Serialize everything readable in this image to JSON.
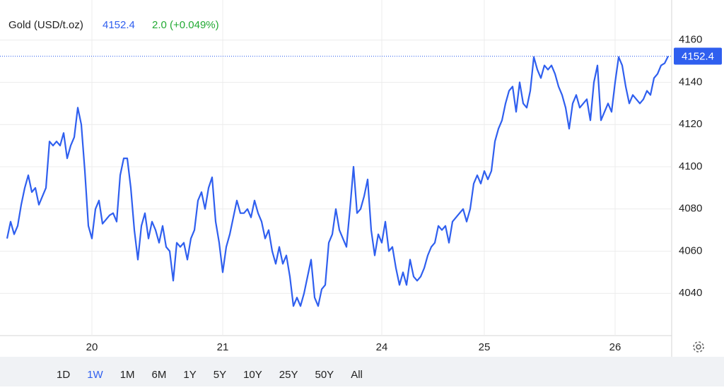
{
  "chart_data": {
    "type": "line",
    "title": "Gold (USD/t.oz)",
    "last_price": 4152.4,
    "change_label": "2.0 (+0.049%)",
    "ylim": [
      4020,
      4179
    ],
    "yticks": [
      4040,
      4060,
      4080,
      4100,
      4120,
      4140,
      4160
    ],
    "grid": true,
    "ranges": [
      "1D",
      "1W",
      "1M",
      "6M",
      "1Y",
      "5Y",
      "10Y",
      "25Y",
      "50Y",
      "All"
    ],
    "selected_range": 1,
    "categories": [
      null,
      null,
      null,
      null,
      null,
      null,
      null,
      null,
      null,
      null,
      null,
      null,
      null,
      null,
      null,
      null,
      null,
      null,
      null,
      null,
      null,
      null,
      null,
      null,
      "20",
      null,
      null,
      null,
      null,
      null,
      null,
      null,
      null,
      null,
      null,
      null,
      null,
      null,
      null,
      null,
      null,
      null,
      null,
      null,
      null,
      null,
      null,
      null,
      null,
      null,
      null,
      null,
      null,
      null,
      null,
      null,
      null,
      null,
      null,
      null,
      null,
      "21",
      null,
      null,
      null,
      null,
      null,
      null,
      null,
      null,
      null,
      null,
      null,
      null,
      null,
      null,
      null,
      null,
      null,
      null,
      null,
      null,
      null,
      null,
      null,
      null,
      null,
      null,
      null,
      null,
      null,
      null,
      null,
      null,
      null,
      null,
      null,
      null,
      null,
      null,
      null,
      null,
      null,
      null,
      null,
      null,
      "24",
      null,
      null,
      null,
      null,
      null,
      null,
      null,
      null,
      null,
      null,
      null,
      null,
      null,
      null,
      null,
      null,
      null,
      null,
      null,
      null,
      null,
      null,
      null,
      null,
      null,
      null,
      null,
      null,
      "25",
      null,
      null,
      null,
      null,
      null,
      null,
      null,
      null,
      null,
      null,
      null,
      null,
      null,
      null,
      null,
      null,
      null,
      null,
      null,
      null,
      null,
      null,
      null,
      null,
      null,
      null,
      null,
      null,
      null,
      null,
      null,
      null,
      null,
      null,
      null,
      null,
      "26",
      null,
      null,
      null,
      null,
      null,
      null,
      null,
      null,
      null,
      null,
      null,
      null,
      null,
      null,
      null
    ],
    "series": [
      {
        "name": "Gold",
        "color": "#2f5fef",
        "values": [
          4066,
          4074,
          4068,
          4072,
          4082,
          4090,
          4096,
          4088,
          4090,
          4082,
          4086,
          4090,
          4112,
          4110,
          4112,
          4110,
          4116,
          4104,
          4110,
          4114,
          4128,
          4120,
          4098,
          4072,
          4066,
          4080,
          4084,
          4073,
          4075,
          4077,
          4078,
          4074,
          4096,
          4104,
          4104,
          4090,
          4070,
          4056,
          4072,
          4078,
          4066,
          4074,
          4070,
          4064,
          4072,
          4062,
          4060,
          4046,
          4064,
          4062,
          4064,
          4056,
          4066,
          4070,
          4084,
          4088,
          4080,
          4090,
          4095,
          4074,
          4064,
          4050,
          4062,
          4068,
          4076,
          4084,
          4078,
          4078,
          4080,
          4076,
          4084,
          4078,
          4074,
          4066,
          4070,
          4060,
          4054,
          4062,
          4054,
          4058,
          4048,
          4034,
          4038,
          4034,
          4040,
          4048,
          4056,
          4038,
          4034,
          4042,
          4044,
          4064,
          4068,
          4080,
          4070,
          4066,
          4062,
          4080,
          4100,
          4078,
          4080,
          4086,
          4094,
          4070,
          4058,
          4068,
          4064,
          4074,
          4060,
          4062,
          4052,
          4044,
          4050,
          4044,
          4056,
          4048,
          4046,
          4048,
          4052,
          4058,
          4062,
          4064,
          4072,
          4070,
          4072,
          4064,
          4074,
          4076,
          4078,
          4080,
          4074,
          4080,
          4092,
          4096,
          4092,
          4098,
          4094,
          4098,
          4112,
          4118,
          4122,
          4130,
          4136,
          4138,
          4126,
          4140,
          4130,
          4128,
          4136,
          4152,
          4146,
          4142,
          4148,
          4146,
          4148,
          4144,
          4138,
          4134,
          4128,
          4118,
          4130,
          4134,
          4128,
          4130,
          4132,
          4122,
          4140,
          4148,
          4122,
          4126,
          4130,
          4126,
          4140,
          4152,
          4148,
          4138,
          4130,
          4134,
          4132,
          4130,
          4132,
          4136,
          4134,
          4142,
          4144,
          4148,
          4149,
          4152.4
        ]
      }
    ]
  }
}
